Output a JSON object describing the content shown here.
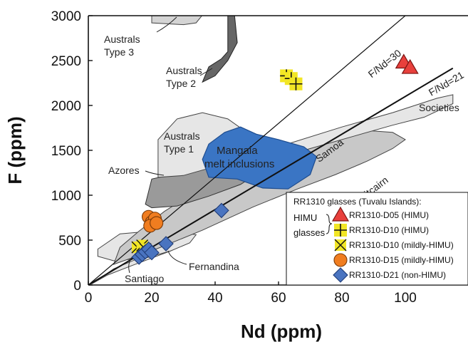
{
  "chart_data": {
    "type": "scatter",
    "xlabel": "Nd (ppm)",
    "ylabel": "F (ppm)",
    "xlim": [
      0,
      115
    ],
    "ylim": [
      0,
      3000
    ],
    "xticks": [
      "0",
      "20",
      "40",
      "60",
      "80",
      "100"
    ],
    "yticks": [
      "0",
      "500",
      "1000",
      "1500",
      "2000",
      "2500",
      "3000"
    ],
    "reference_lines": [
      {
        "label": "F/Nd=30",
        "slope": 30
      },
      {
        "label": "F/Nd=21",
        "slope": 21
      }
    ],
    "fields": [
      {
        "label": "Australs\nType 3"
      },
      {
        "label": "Australs\nType 2"
      },
      {
        "label": "Australs\nType 1"
      },
      {
        "label": "Mangaia\nmelt inclusions",
        "color": "#3a75c4"
      },
      {
        "label": "Azores"
      },
      {
        "label": "Samoa"
      },
      {
        "label": "Pitcairn"
      },
      {
        "label": "Societies"
      },
      {
        "label": "Fernandina"
      },
      {
        "label": "Santiago"
      }
    ],
    "legend": {
      "title": "RR1310 glasses (Tuvalu Islands):",
      "group_label": "HIMU\nglasses",
      "position": "bottom-right"
    },
    "series": [
      {
        "name": "RR1310-D05 (HIMU)",
        "marker": "triangle",
        "color": "#e8403c",
        "points": [
          [
            99.5,
            2480
          ],
          [
            101.5,
            2420
          ]
        ]
      },
      {
        "name": "RR1310-D10 (HIMU)",
        "marker": "plus-square",
        "color": "#f2e625",
        "points": [
          [
            62.5,
            2330
          ],
          [
            64,
            2300
          ],
          [
            65.5,
            2240
          ]
        ]
      },
      {
        "name": "RR1310-D10 (mildly-HIMU)",
        "marker": "x-square",
        "color": "#f2e625",
        "points": [
          [
            15.5,
            420
          ],
          [
            17,
            440
          ],
          [
            18,
            400
          ]
        ]
      },
      {
        "name": "RR1310-D15 (mildly-HIMU)",
        "marker": "circle",
        "color": "#f07d20",
        "points": [
          [
            19,
            760
          ],
          [
            20,
            700
          ],
          [
            21,
            740
          ],
          [
            19.5,
            660
          ],
          [
            21.5,
            690
          ]
        ]
      },
      {
        "name": "RR1310-D21 (non-HIMU)",
        "marker": "diamond",
        "color": "#4a74c0",
        "points": [
          [
            16,
            310
          ],
          [
            17,
            340
          ],
          [
            18,
            370
          ],
          [
            19,
            400
          ],
          [
            20,
            360
          ],
          [
            24.5,
            460
          ],
          [
            42,
            830
          ]
        ]
      }
    ]
  }
}
